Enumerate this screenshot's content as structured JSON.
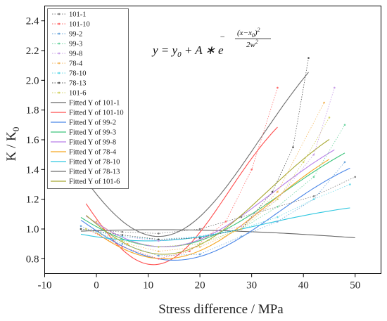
{
  "chart_data": {
    "type": "scatter",
    "xlabel": "Stress difference / MPa",
    "ylabel": "K / K",
    "ylabel_sub": "0",
    "xlim": [
      -10,
      55
    ],
    "ylim": [
      0.7,
      2.5
    ],
    "xticks": [
      "-10",
      "0",
      "10",
      "20",
      "30",
      "40",
      "50"
    ],
    "yticks": [
      "0.8",
      "1.0",
      "1.2",
      "1.4",
      "1.6",
      "1.8",
      "2.0",
      "2.2",
      "2.4"
    ],
    "grid": false,
    "legend_position": "top-left",
    "equation": {
      "lhs": "y = y",
      "lhs_sub": "0",
      "mid": " + A ∗ e",
      "exp_minus": "−",
      "exp_num": "(x−x",
      "exp_num_sub": "0",
      "exp_num_end": ")",
      "exp_num_sup": "2",
      "exp_den": "2w",
      "exp_den_sup": "2"
    },
    "data_series": [
      {
        "name": "101-1",
        "color": "#7f7f7f",
        "points": [
          [
            -3,
            1.0
          ],
          [
            5,
            0.98
          ],
          [
            12,
            0.97
          ],
          [
            20,
            1.0
          ],
          [
            28,
            1.08
          ],
          [
            35,
            1.15
          ],
          [
            42,
            1.22
          ],
          [
            50,
            1.35
          ]
        ]
      },
      {
        "name": "101-10",
        "color": "#ff6b6b",
        "points": [
          [
            -2,
            1.0
          ],
          [
            5,
            0.88
          ],
          [
            12,
            0.8
          ],
          [
            18,
            0.85
          ],
          [
            25,
            1.05
          ],
          [
            30,
            1.4
          ],
          [
            35,
            1.95
          ]
        ]
      },
      {
        "name": "99-2",
        "color": "#6fa8dc",
        "points": [
          [
            -3,
            1.02
          ],
          [
            5,
            0.9
          ],
          [
            12,
            0.82
          ],
          [
            20,
            0.83
          ],
          [
            28,
            0.95
          ],
          [
            35,
            1.05
          ],
          [
            42,
            1.2
          ],
          [
            48,
            1.45
          ]
        ]
      },
      {
        "name": "99-3",
        "color": "#6dd4a0",
        "points": [
          [
            -2,
            1.0
          ],
          [
            5,
            0.92
          ],
          [
            12,
            0.88
          ],
          [
            20,
            0.9
          ],
          [
            28,
            1.0
          ],
          [
            35,
            1.15
          ],
          [
            42,
            1.35
          ],
          [
            48,
            1.7
          ]
        ]
      },
      {
        "name": "99-8",
        "color": "#c9a0e8",
        "points": [
          [
            -2,
            1.0
          ],
          [
            5,
            0.95
          ],
          [
            12,
            0.92
          ],
          [
            20,
            0.95
          ],
          [
            28,
            1.02
          ],
          [
            35,
            1.2
          ],
          [
            42,
            1.5
          ],
          [
            46,
            1.95
          ]
        ]
      },
      {
        "name": "78-4",
        "color": "#f4b860",
        "points": [
          [
            0,
            1.05
          ],
          [
            6,
            0.9
          ],
          [
            12,
            0.85
          ],
          [
            20,
            0.88
          ],
          [
            28,
            1.0
          ],
          [
            35,
            1.25
          ],
          [
            44,
            1.85
          ]
        ]
      },
      {
        "name": "78-10",
        "color": "#66d9e8",
        "points": [
          [
            -3,
            1.0
          ],
          [
            5,
            0.95
          ],
          [
            12,
            0.93
          ],
          [
            20,
            0.95
          ],
          [
            28,
            1.0
          ],
          [
            35,
            1.08
          ],
          [
            42,
            1.2
          ],
          [
            49,
            1.3
          ]
        ]
      },
      {
        "name": "78-13",
        "color": "#555555",
        "points": [
          [
            -3,
            1.0
          ],
          [
            5,
            0.96
          ],
          [
            12,
            0.93
          ],
          [
            20,
            0.94
          ],
          [
            28,
            1.0
          ],
          [
            34,
            1.25
          ],
          [
            38,
            1.55
          ],
          [
            41,
            2.15
          ]
        ]
      },
      {
        "name": "101-6",
        "color": "#d4d46a",
        "points": [
          [
            -2,
            1.0
          ],
          [
            5,
            0.92
          ],
          [
            12,
            0.88
          ],
          [
            20,
            0.9
          ],
          [
            28,
            1.0
          ],
          [
            35,
            1.2
          ],
          [
            40,
            1.45
          ],
          [
            45,
            1.75
          ]
        ]
      }
    ],
    "fitted_series": [
      {
        "name": "Fitted Y of 101-1",
        "color": "#666666",
        "y0": 0.78,
        "A": 0.215,
        "xc": 12,
        "w": 50,
        "xrange": [
          -3,
          50
        ]
      },
      {
        "name": "Fitted Y of 101-10",
        "color": "#ff4d4d",
        "y0": 2.0,
        "A": -1.24,
        "xc": 11,
        "w": 14.5,
        "xrange": [
          -2,
          35
        ]
      },
      {
        "name": "Fitted Y of 99-2",
        "color": "#4a86e8",
        "y0": 1.6,
        "A": -0.81,
        "xc": 15,
        "w": 20,
        "xrange": [
          -3,
          49
        ]
      },
      {
        "name": "Fitted Y of 99-3",
        "color": "#3cc47c",
        "y0": 1.8,
        "A": -0.92,
        "xc": 13,
        "w": 23,
        "xrange": [
          -3,
          48
        ]
      },
      {
        "name": "Fitted Y of 99-8",
        "color": "#b77ee8",
        "y0": 1.8,
        "A": -0.92,
        "xc": 13,
        "w": 21,
        "xrange": [
          -2,
          46
        ]
      },
      {
        "name": "Fitted Y of 78-4",
        "color": "#f5a623",
        "y0": 1.75,
        "A": -0.95,
        "xc": 13,
        "w": 20.5,
        "xrange": [
          0,
          45
        ]
      },
      {
        "name": "Fitted Y of 78-10",
        "color": "#2fc7e0",
        "y0": 1.2,
        "A": -0.28,
        "xc": 10,
        "w": 22,
        "xrange": [
          -3,
          49
        ]
      },
      {
        "name": "Fitted Y of 78-13",
        "color": "#6e6e6e",
        "y0": 2.6,
        "A": -1.65,
        "xc": 12,
        "w": 19.5,
        "xrange": [
          -3,
          41
        ]
      },
      {
        "name": "Fitted Y of 101-6",
        "color": "#a8a832",
        "y0": 1.9,
        "A": -1.07,
        "xc": 13,
        "w": 20,
        "xrange": [
          -2,
          45
        ]
      }
    ]
  }
}
